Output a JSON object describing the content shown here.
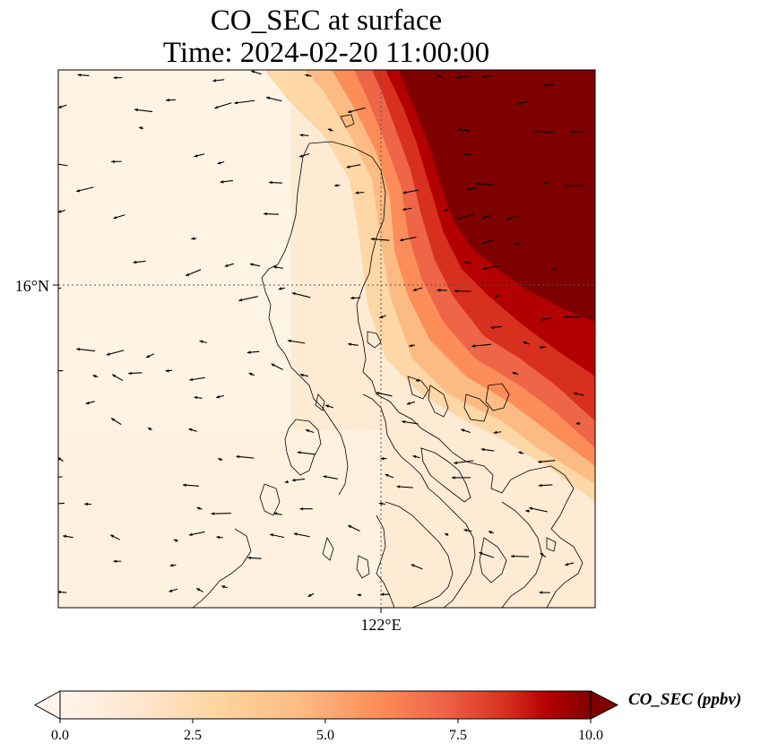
{
  "title": {
    "line1": "CO_SEC at surface",
    "line2": "Time: 2024-02-20 11:00:00"
  },
  "axes": {
    "lat_label": "16°N",
    "lon_label": "122°E"
  },
  "colorbar": {
    "label": "CO_SEC (ppbv)",
    "ticks": [
      "0.0",
      "2.5",
      "5.0",
      "7.5",
      "10.0"
    ],
    "min": 0,
    "max": 10,
    "extend": "both",
    "colormap": [
      "#fff5eb",
      "#fdd49e",
      "#fdbb84",
      "#fc8d59",
      "#ef6548",
      "#d7301f",
      "#b30000",
      "#7f0000"
    ]
  },
  "colors": {
    "land_outline": "#000000",
    "gridline": "#555555",
    "vectors": "#000000"
  }
}
